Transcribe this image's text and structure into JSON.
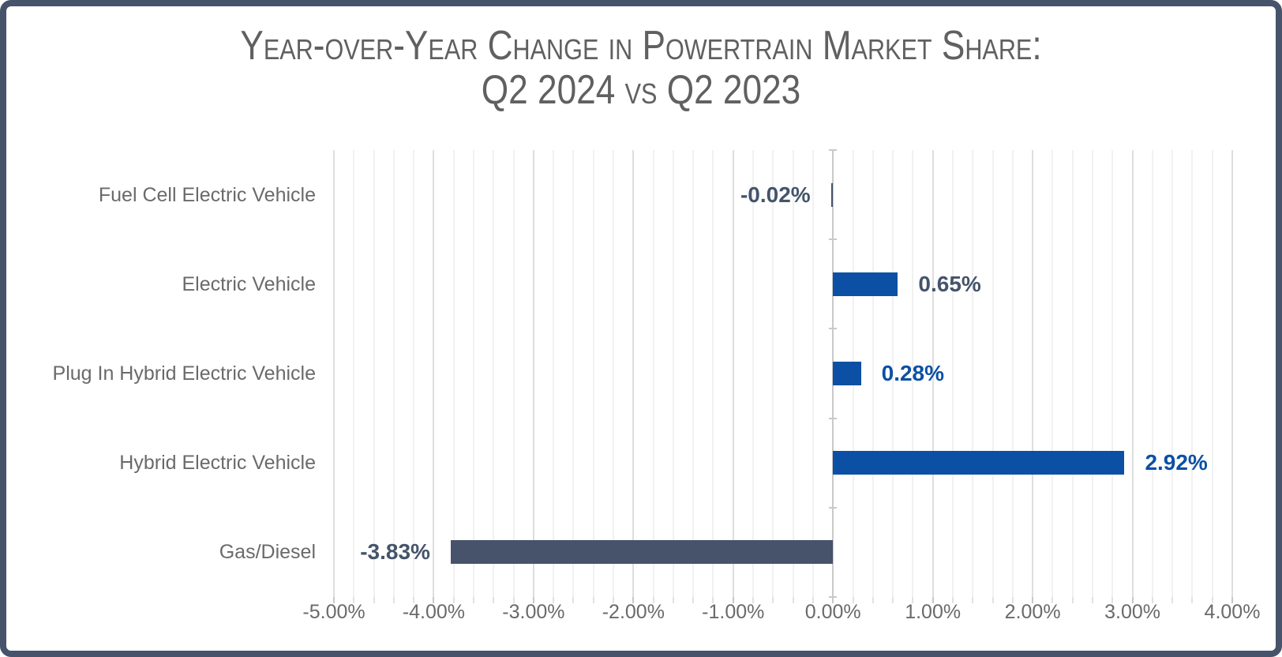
{
  "title": {
    "line1": "Year-over-Year Change in Powertrain Market Share:",
    "line2": "Q2 2024 vs Q2 2023"
  },
  "chart_data": {
    "type": "bar",
    "orientation": "horizontal",
    "title": "Year-over-Year Change in Powertrain Market Share: Q2 2024 vs Q2 2023",
    "categories": [
      "Fuel Cell Electric Vehicle",
      "Electric Vehicle",
      "Plug In Hybrid Electric Vehicle",
      "Hybrid Electric Vehicle",
      "Gas/Diesel"
    ],
    "values": [
      -0.02,
      0.65,
      0.28,
      2.92,
      -3.83
    ],
    "value_labels": [
      "-0.02%",
      "0.65%",
      "0.28%",
      "2.92%",
      "-3.83%"
    ],
    "bar_colors": [
      "#47536B",
      "#0B50A4",
      "#0B50A4",
      "#0B50A4",
      "#47536B"
    ],
    "value_label_colors": [
      "#44546A",
      "#44546A",
      "#0B50A4",
      "#0B50A4",
      "#44546A"
    ],
    "x_tick_labels": [
      "-5.00%",
      "-4.00%",
      "-3.00%",
      "-2.00%",
      "-1.00%",
      "0.00%",
      "1.00%",
      "2.00%",
      "3.00%",
      "4.00%"
    ],
    "x_tick_values": [
      -5,
      -4,
      -3,
      -2,
      -1,
      0,
      1,
      2,
      3,
      4
    ],
    "xlim": [
      -5,
      4
    ],
    "major_step": 1,
    "minor_step": 0.2,
    "grid": "vertical, minor and major gridlines",
    "legend": "none",
    "xlabel": "",
    "ylabel": ""
  },
  "colors": {
    "frame_border": "#46536B",
    "positive_bar": "#0B50A4",
    "negative_bar": "#47536B",
    "title_text": "#606060",
    "axis_text": "#6a6a6a",
    "minor_grid": "#f1f1f1",
    "major_grid": "#dedede",
    "background": "#ffffff"
  }
}
